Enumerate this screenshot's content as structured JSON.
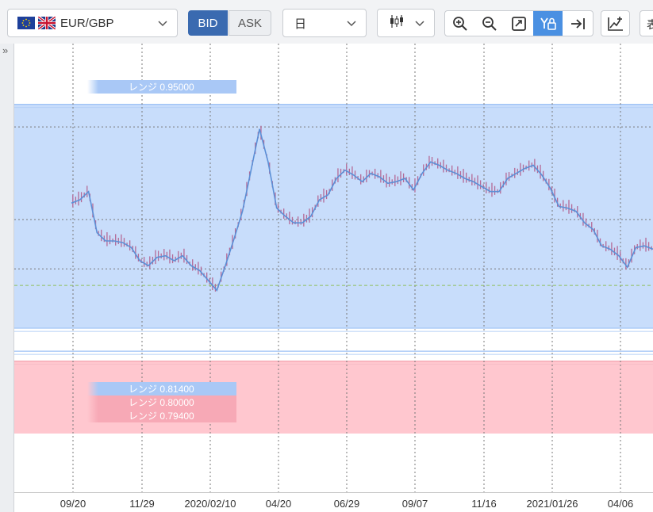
{
  "toolbar": {
    "pair": "EUR/GBP",
    "bid_label": "BID",
    "ask_label": "ASK",
    "period": "日",
    "truncated_text": "表",
    "icons": [
      "zoom-in-icon",
      "zoom-out-icon",
      "fit-icon",
      "price-scale-lock-icon",
      "jump-latest-icon",
      "indicator-add-icon"
    ]
  },
  "colors": {
    "range_blue": "#c8ddfb",
    "range_pink": "#ffc7cf",
    "bid_active": "#3a6ab0",
    "line": "#5b8fd6",
    "candle": "#b46a97",
    "toolbar_active": "#4a90e2"
  },
  "range_labels": [
    {
      "name": "range-label-0.95",
      "text": "レンジ 0.95000"
    },
    {
      "name": "range-label-0.814",
      "text": "レンジ 0.81400"
    },
    {
      "name": "range-label-0.80",
      "text": "レンジ 0.80000"
    },
    {
      "name": "range-label-0.794",
      "text": "レンジ 0.79400"
    }
  ],
  "x_ticks": [
    "09/20",
    "11/29",
    "2020/02/10",
    "04/20",
    "06/29",
    "09/07",
    "11/16",
    "2021/01/26",
    "04/06"
  ],
  "chart_data": {
    "type": "line",
    "x_ticks": [
      "09/20",
      "11/29",
      "2020/02/10",
      "04/20",
      "06/29",
      "09/07",
      "11/16",
      "2021/01/26",
      "04/06"
    ],
    "series": [
      {
        "x": [
          "09/20",
          "10/01",
          "10/08",
          "10/15",
          "10/22",
          "11/01",
          "11/10",
          "11/20",
          "11/29",
          "12/06",
          "12/13",
          "12/20",
          "01/05",
          "01/15",
          "01/25",
          "02/01",
          "02/10",
          "02/18",
          "02/28",
          "03/05",
          "03/10",
          "03/15",
          "03/19",
          "03/25",
          "04/01",
          "04/10",
          "04/20",
          "04/28",
          "05/05",
          "05/15",
          "05/25",
          "06/01",
          "06/10",
          "06/20",
          "06/29",
          "07/06",
          "07/15",
          "07/25",
          "08/01",
          "08/10",
          "08/20",
          "09/01",
          "09/07",
          "09/11",
          "09/20",
          "09/30",
          "10/10",
          "10/20",
          "10/30",
          "11/10",
          "11/16",
          "11/25",
          "12/01",
          "12/10",
          "12/20",
          "12/30",
          "01/10",
          "01/20",
          "01/26",
          "02/05",
          "02/15",
          "02/25",
          "03/05",
          "03/15",
          "03/25",
          "04/01",
          "04/06",
          "04/15",
          "04/25"
        ],
        "y": [
          0.89,
          0.892,
          0.897,
          0.872,
          0.867,
          0.867,
          0.866,
          0.863,
          0.855,
          0.852,
          0.857,
          0.858,
          0.855,
          0.858,
          0.852,
          0.849,
          0.843,
          0.837,
          0.852,
          0.868,
          0.885,
          0.91,
          0.935,
          0.915,
          0.887,
          0.882,
          0.878,
          0.878,
          0.882,
          0.892,
          0.895,
          0.905,
          0.91,
          0.907,
          0.903,
          0.908,
          0.906,
          0.902,
          0.903,
          0.905,
          0.898,
          0.908,
          0.915,
          0.913,
          0.91,
          0.908,
          0.905,
          0.903,
          0.9,
          0.897,
          0.897,
          0.905,
          0.908,
          0.911,
          0.913,
          0.907,
          0.899,
          0.888,
          0.887,
          0.885,
          0.878,
          0.874,
          0.864,
          0.862,
          0.858,
          0.851,
          0.863,
          0.864,
          0.862
        ]
      }
    ],
    "ranges": [
      {
        "label": "レンジ 0.95000",
        "from": 0.814,
        "to": 0.95,
        "color": "#c8ddfb"
      },
      {
        "label": "レンジ 0.79400",
        "from": 0.75,
        "to": 0.794,
        "color": "#ffc7cf"
      }
    ],
    "reference_lines": [
      0.95,
      0.814,
      0.8,
      0.794
    ],
    "ylim": [
      0.75,
      0.958
    ],
    "grid": true
  }
}
